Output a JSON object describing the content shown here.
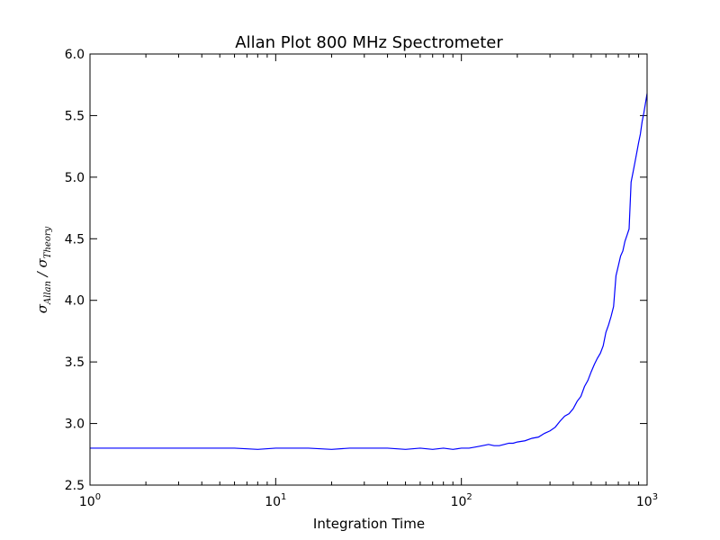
{
  "chart_data": {
    "type": "line",
    "title": "Allan Plot 800 MHz Spectrometer",
    "xlabel": "Integration Time",
    "ylabel": {
      "sym1": "σ",
      "sub1": "Allan",
      "sep": " / ",
      "sym2": "σ",
      "sub2": "Theory"
    },
    "xscale": "log",
    "xlim": [
      1,
      1000
    ],
    "ylim": [
      2.5,
      6.0
    ],
    "x_ticks": [
      {
        "base": "10",
        "exp": "0",
        "value": 1
      },
      {
        "base": "10",
        "exp": "1",
        "value": 10
      },
      {
        "base": "10",
        "exp": "2",
        "value": 100
      },
      {
        "base": "10",
        "exp": "3",
        "value": 1000
      }
    ],
    "y_ticks": [
      "2.5",
      "3.0",
      "3.5",
      "4.0",
      "4.5",
      "5.0",
      "5.5",
      "6.0"
    ],
    "grid": false,
    "line_color": "#0000ff",
    "series": [
      {
        "x": [
          1,
          2,
          3,
          4,
          5,
          6,
          8,
          10,
          12,
          15,
          20,
          25,
          30,
          40,
          50,
          60,
          70,
          80,
          90,
          100,
          110,
          120,
          130,
          140,
          150,
          160,
          170,
          180,
          190,
          200,
          220,
          240,
          260,
          280,
          300,
          320,
          340,
          360,
          380,
          400,
          420,
          440,
          460,
          480,
          500,
          520,
          540,
          560,
          580,
          600,
          620,
          640,
          660,
          680,
          700,
          720,
          740,
          760,
          780,
          800,
          820,
          840,
          860,
          880,
          900,
          920,
          940,
          960,
          980,
          1000
        ],
        "y": [
          2.8,
          2.8,
          2.8,
          2.8,
          2.8,
          2.8,
          2.79,
          2.8,
          2.8,
          2.8,
          2.79,
          2.8,
          2.8,
          2.8,
          2.79,
          2.8,
          2.79,
          2.8,
          2.79,
          2.8,
          2.8,
          2.81,
          2.82,
          2.83,
          2.82,
          2.82,
          2.83,
          2.84,
          2.84,
          2.85,
          2.86,
          2.88,
          2.89,
          2.92,
          2.94,
          2.97,
          3.02,
          3.06,
          3.08,
          3.12,
          3.18,
          3.22,
          3.3,
          3.35,
          3.42,
          3.48,
          3.53,
          3.57,
          3.63,
          3.74,
          3.8,
          3.87,
          3.95,
          4.2,
          4.28,
          4.36,
          4.4,
          4.48,
          4.53,
          4.58,
          4.96,
          5.04,
          5.12,
          5.2,
          5.28,
          5.35,
          5.45,
          5.52,
          5.6,
          5.68
        ]
      }
    ]
  }
}
